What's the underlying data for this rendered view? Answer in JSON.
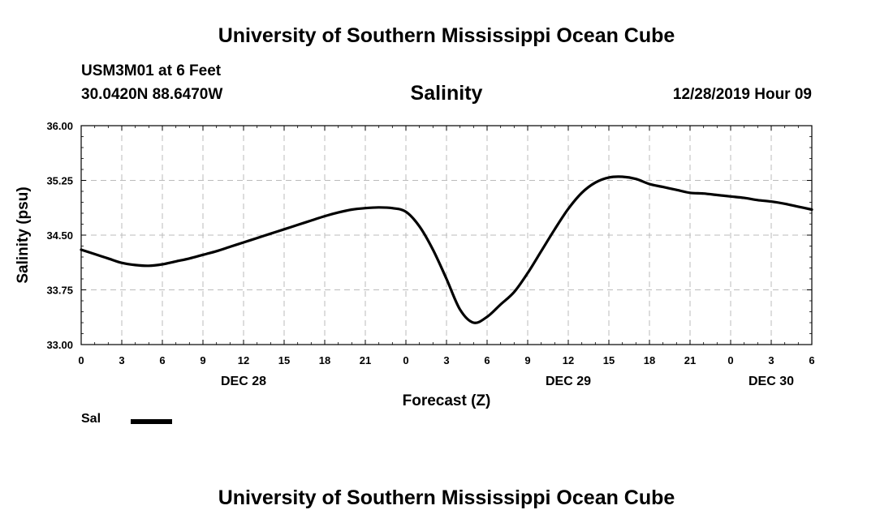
{
  "header": {
    "title_top": "University of Southern Mississippi Ocean Cube",
    "station": "USM3M01 at 6 Feet",
    "coords": "30.0420N 88.6470W",
    "chart_title": "Salinity",
    "timestamp": "12/28/2019 Hour 09",
    "title_bottom": "University of Southern Mississippi Ocean Cube"
  },
  "legend": {
    "label": "Sal",
    "color": "#000000"
  },
  "chart_data": {
    "type": "line",
    "title": "Salinity",
    "xlabel": "Forecast (Z)",
    "ylabel": "Salinity (psu)",
    "xlim": [
      0,
      54
    ],
    "ylim": [
      33.0,
      36.0
    ],
    "grid": true,
    "y_ticks": [
      "33.00",
      "33.75",
      "34.50",
      "35.25",
      "36.00"
    ],
    "y_tick_values": [
      33.0,
      33.75,
      34.5,
      35.25,
      36.0
    ],
    "x_tick_labels": [
      "0",
      "3",
      "6",
      "9",
      "12",
      "15",
      "18",
      "21",
      "0",
      "3",
      "6",
      "9",
      "12",
      "15",
      "18",
      "21",
      "0",
      "3",
      "6"
    ],
    "x_tick_hours": [
      0,
      3,
      6,
      9,
      12,
      15,
      18,
      21,
      24,
      27,
      30,
      33,
      36,
      39,
      42,
      45,
      48,
      51,
      54
    ],
    "day_labels": [
      {
        "label": "DEC 28",
        "hour": 12
      },
      {
        "label": "DEC 29",
        "hour": 36
      },
      {
        "label": "DEC 30",
        "hour": 51
      }
    ],
    "series": [
      {
        "name": "Sal",
        "x": [
          0,
          1,
          2,
          3,
          4,
          5,
          6,
          7,
          8,
          9,
          10,
          11,
          12,
          13,
          14,
          15,
          16,
          17,
          18,
          19,
          20,
          21,
          22,
          23,
          24,
          25,
          26,
          27,
          28,
          29,
          30,
          31,
          32,
          33,
          34,
          35,
          36,
          37,
          38,
          39,
          40,
          41,
          42,
          43,
          44,
          45,
          46,
          47,
          48,
          49,
          50,
          51,
          52,
          53,
          54
        ],
        "y": [
          34.3,
          34.24,
          34.18,
          34.12,
          34.09,
          34.08,
          34.1,
          34.14,
          34.18,
          34.23,
          34.28,
          34.34,
          34.4,
          34.46,
          34.52,
          34.58,
          34.64,
          34.7,
          34.76,
          34.81,
          34.85,
          34.87,
          34.88,
          34.87,
          34.82,
          34.62,
          34.3,
          33.9,
          33.48,
          33.3,
          33.38,
          33.55,
          33.72,
          33.98,
          34.28,
          34.58,
          34.86,
          35.08,
          35.22,
          35.29,
          35.3,
          35.27,
          35.2,
          35.16,
          35.12,
          35.08,
          35.07,
          35.05,
          35.03,
          35.01,
          34.98,
          34.96,
          34.93,
          34.89,
          34.85
        ]
      }
    ]
  }
}
